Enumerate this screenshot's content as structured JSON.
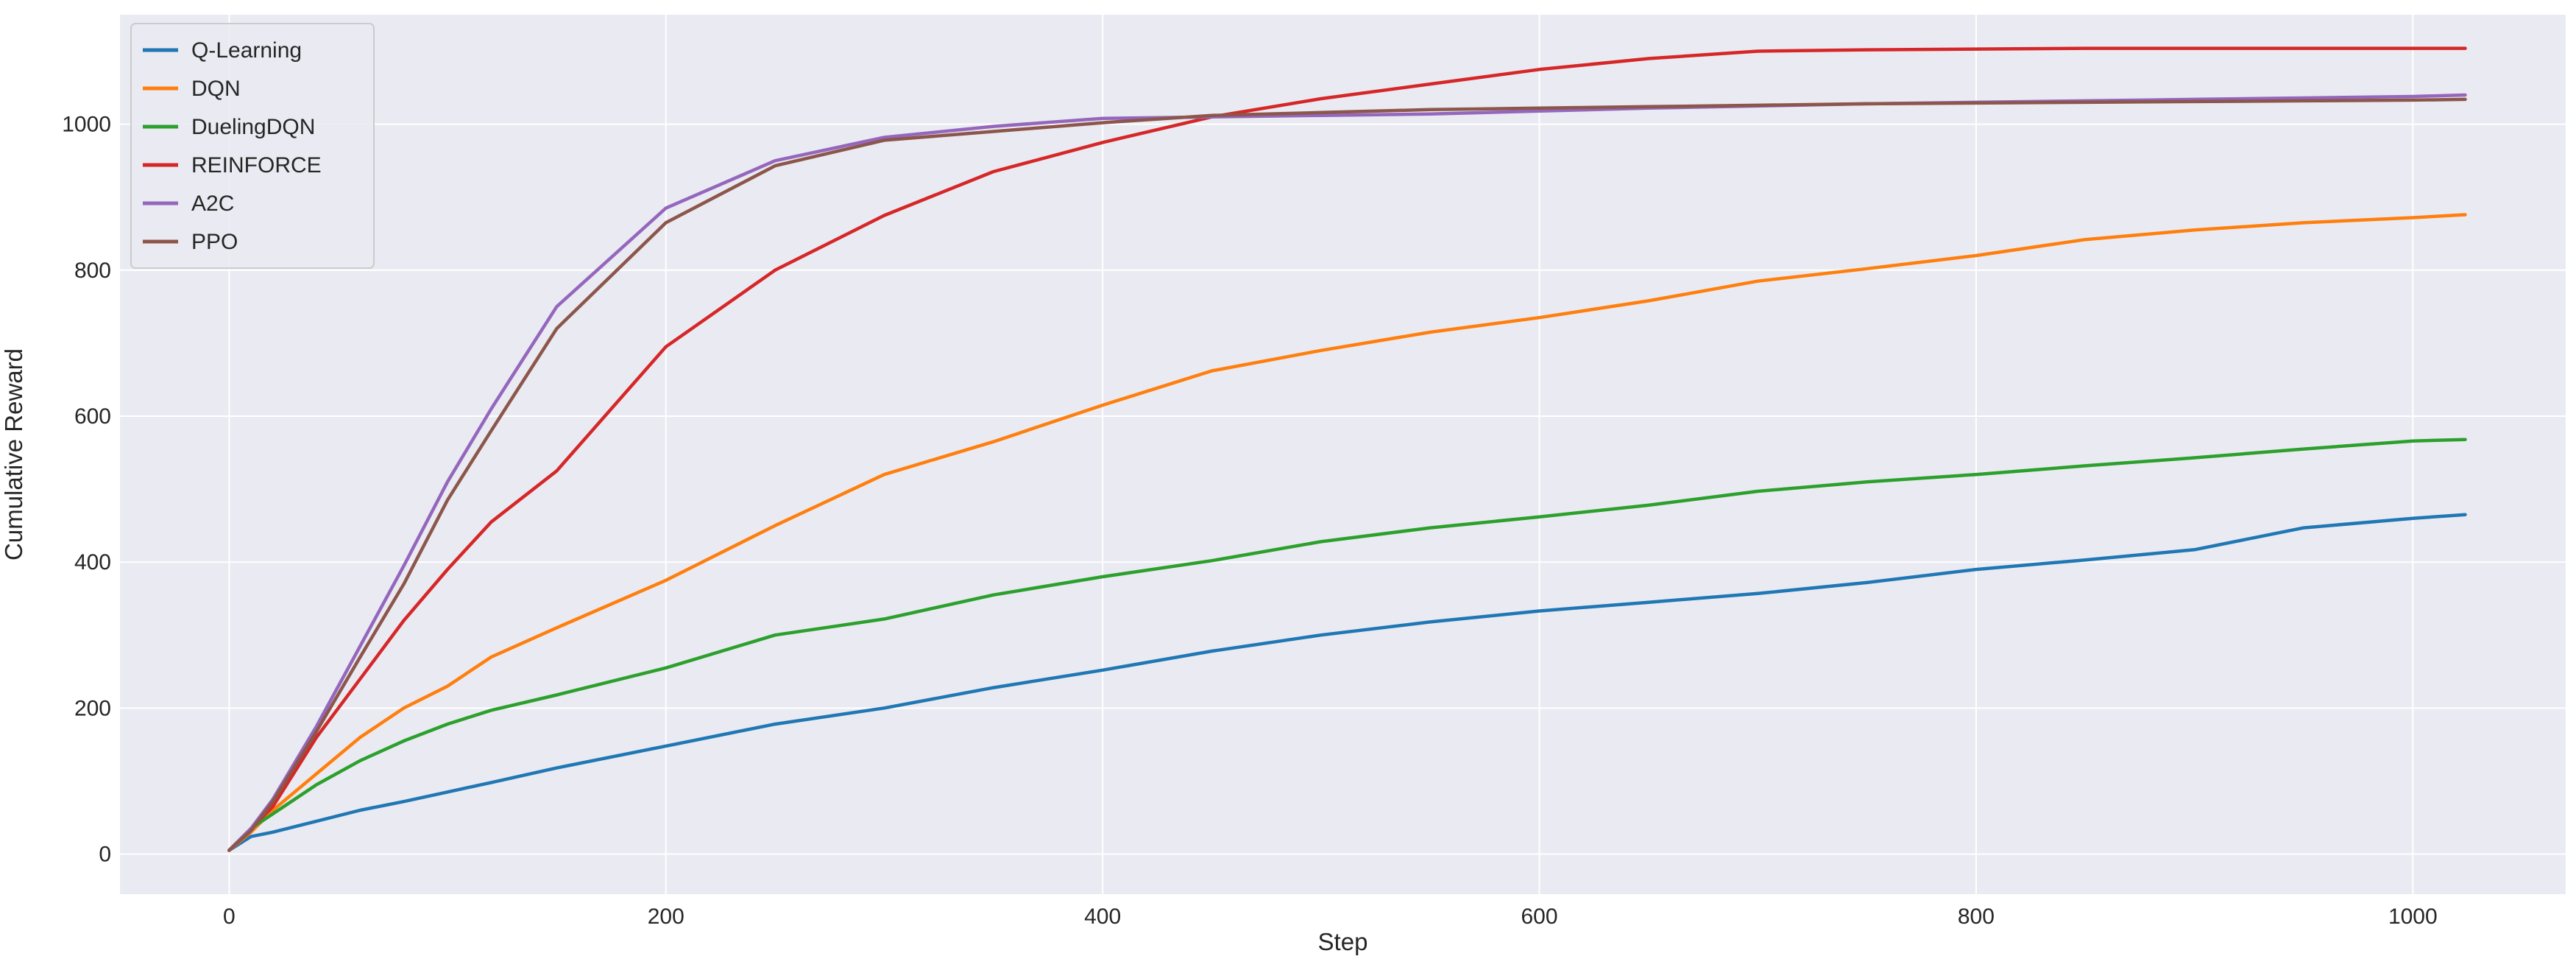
{
  "chart_data": {
    "type": "line",
    "title": "",
    "xlabel": "Step",
    "ylabel": "Cumulative Reward",
    "xlim": [
      -50,
      1070
    ],
    "ylim": [
      -55,
      1150
    ],
    "xticks": [
      0,
      200,
      400,
      600,
      800,
      1000
    ],
    "yticks": [
      0,
      200,
      400,
      600,
      800,
      1000
    ],
    "grid": true,
    "legend_position": "top-left",
    "background": "#eaeaf2",
    "grid_color": "#ffffff",
    "series": [
      {
        "name": "Q-Learning",
        "color": "#1f77b4",
        "x": [
          0,
          10,
          20,
          40,
          60,
          80,
          100,
          120,
          150,
          200,
          250,
          300,
          350,
          400,
          450,
          500,
          550,
          600,
          650,
          700,
          750,
          800,
          850,
          900,
          950,
          1000,
          1024
        ],
        "y": [
          5,
          24,
          30,
          45,
          60,
          72,
          85,
          98,
          118,
          148,
          178,
          200,
          228,
          252,
          278,
          300,
          318,
          333,
          345,
          357,
          372,
          390,
          403,
          417,
          447,
          460,
          465
        ]
      },
      {
        "name": "DQN",
        "color": "#ff7f0e",
        "x": [
          0,
          10,
          20,
          40,
          60,
          80,
          100,
          120,
          150,
          200,
          250,
          300,
          350,
          400,
          450,
          500,
          550,
          600,
          650,
          700,
          750,
          800,
          850,
          900,
          950,
          1000,
          1024
        ],
        "y": [
          5,
          30,
          60,
          110,
          160,
          200,
          230,
          270,
          310,
          375,
          450,
          520,
          565,
          615,
          662,
          690,
          715,
          735,
          758,
          785,
          802,
          820,
          842,
          855,
          865,
          872,
          876
        ]
      },
      {
        "name": "DuelingDQN",
        "color": "#2ca02c",
        "x": [
          0,
          10,
          20,
          40,
          60,
          80,
          100,
          120,
          150,
          200,
          250,
          300,
          350,
          400,
          450,
          500,
          550,
          600,
          650,
          700,
          750,
          800,
          850,
          900,
          950,
          1000,
          1024
        ],
        "y": [
          5,
          35,
          55,
          95,
          128,
          155,
          178,
          197,
          218,
          255,
          300,
          322,
          355,
          380,
          402,
          428,
          447,
          462,
          478,
          497,
          510,
          520,
          532,
          543,
          555,
          566,
          568
        ]
      },
      {
        "name": "REINFORCE",
        "color": "#d62728",
        "x": [
          0,
          10,
          20,
          40,
          60,
          80,
          100,
          120,
          150,
          200,
          250,
          300,
          350,
          400,
          450,
          500,
          550,
          600,
          650,
          700,
          750,
          800,
          850,
          900,
          950,
          1000,
          1024
        ],
        "y": [
          5,
          35,
          65,
          160,
          240,
          320,
          390,
          455,
          525,
          695,
          800,
          875,
          935,
          975,
          1010,
          1035,
          1055,
          1075,
          1090,
          1100,
          1102,
          1103,
          1104,
          1104,
          1104,
          1104,
          1104
        ]
      },
      {
        "name": "A2C",
        "color": "#9467bd",
        "x": [
          0,
          10,
          20,
          40,
          60,
          80,
          100,
          120,
          150,
          200,
          250,
          300,
          350,
          400,
          450,
          500,
          550,
          600,
          650,
          700,
          750,
          800,
          850,
          900,
          950,
          1000,
          1024
        ],
        "y": [
          5,
          35,
          75,
          175,
          285,
          395,
          510,
          610,
          750,
          885,
          950,
          982,
          997,
          1008,
          1010,
          1012,
          1014,
          1018,
          1022,
          1025,
          1028,
          1030,
          1032,
          1034,
          1036,
          1038,
          1040
        ]
      },
      {
        "name": "PPO",
        "color": "#8c564b",
        "x": [
          0,
          10,
          20,
          40,
          60,
          80,
          100,
          120,
          150,
          200,
          250,
          300,
          350,
          400,
          450,
          500,
          550,
          600,
          650,
          700,
          750,
          800,
          850,
          900,
          950,
          1000,
          1024
        ],
        "y": [
          5,
          32,
          72,
          168,
          270,
          370,
          485,
          580,
          720,
          865,
          943,
          978,
          990,
          1002,
          1012,
          1016,
          1020,
          1022,
          1024,
          1026,
          1028,
          1029,
          1030,
          1031,
          1032,
          1033,
          1034
        ]
      }
    ]
  }
}
